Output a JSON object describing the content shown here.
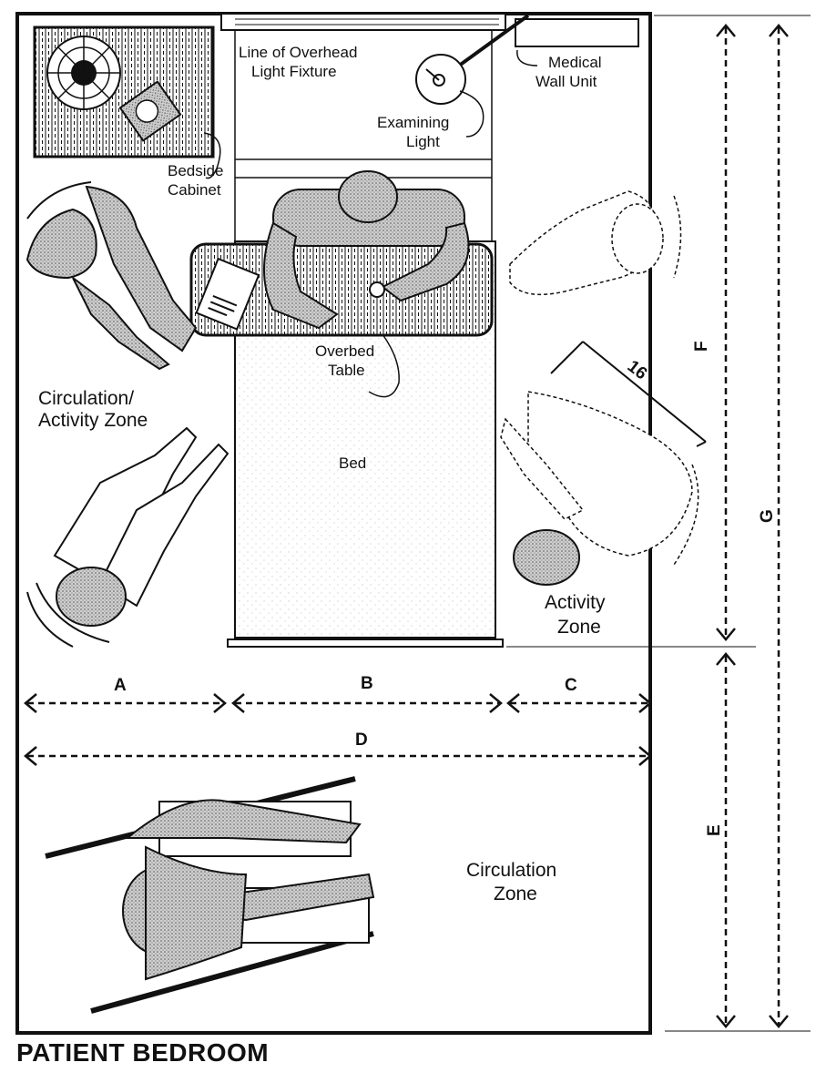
{
  "title": "PATIENT BEDROOM",
  "labels": {
    "overhead_line": [
      "Line of Overhead",
      "Light Fixture"
    ],
    "medical_wall_unit": [
      "Medical",
      "Wall Unit"
    ],
    "examining_light": [
      "Examining",
      "Light"
    ],
    "bedside_cabinet": [
      "Bedside",
      "Cabinet"
    ],
    "overbed_table": [
      "Overbed",
      "Table"
    ],
    "circulation_activity_zone": [
      "Circulation/",
      "Activity Zone"
    ],
    "bed": "Bed",
    "activity_zone": [
      "Activity",
      "Zone"
    ],
    "circulation_zone": [
      "Circulation",
      "Zone"
    ],
    "angle_dim": "16"
  },
  "dimensions": {
    "A": "A",
    "B": "B",
    "C": "C",
    "D": "D",
    "E": "E",
    "F": "F",
    "G": "G"
  },
  "colors": {
    "ink": "#111111",
    "screen": "#bdbdbd",
    "paper": "#ffffff"
  }
}
